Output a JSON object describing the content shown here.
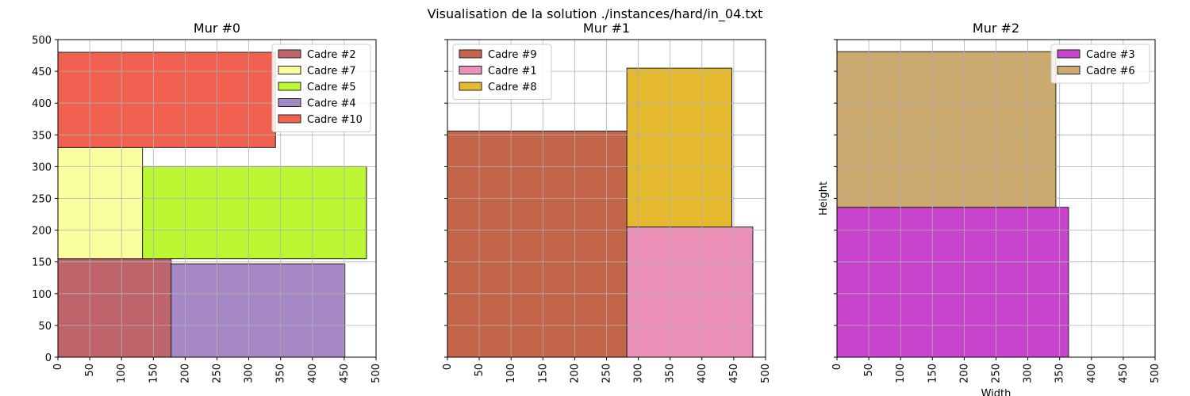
{
  "figure": {
    "suptitle": "Visualisation de la solution ./instances/hard/in_04.txt"
  },
  "chart_data": [
    {
      "type": "bar",
      "title": "Mur #0",
      "xlabel": "",
      "ylabel": "",
      "xlim": [
        0,
        500
      ],
      "ylim": [
        0,
        500
      ],
      "xticks": [
        0,
        50,
        100,
        150,
        200,
        250,
        300,
        350,
        400,
        450,
        500
      ],
      "yticks": [
        0,
        50,
        100,
        150,
        200,
        250,
        300,
        350,
        400,
        450,
        500
      ],
      "show_ytick_labels": true,
      "grid": true,
      "legend_position": "top-right",
      "rects": [
        {
          "name": "Cadre #2",
          "x": 0,
          "y": 0,
          "width": 178,
          "height": 155,
          "color": "#c0646c"
        },
        {
          "name": "Cadre #7",
          "x": 0,
          "y": 155,
          "width": 133,
          "height": 175,
          "color": "#fafe9f"
        },
        {
          "name": "Cadre #5",
          "x": 133,
          "y": 155,
          "width": 352,
          "height": 145,
          "color": "#bbf733"
        },
        {
          "name": "Cadre #4",
          "x": 178,
          "y": 0,
          "width": 273,
          "height": 147,
          "color": "#a688c6"
        },
        {
          "name": "Cadre #10",
          "x": 0,
          "y": 330,
          "width": 342,
          "height": 150,
          "color": "#f06152"
        }
      ]
    },
    {
      "type": "bar",
      "title": "Mur #1",
      "xlabel": "",
      "ylabel": "",
      "xlim": [
        0,
        500
      ],
      "ylim": [
        0,
        500
      ],
      "xticks": [
        0,
        50,
        100,
        150,
        200,
        250,
        300,
        350,
        400,
        450,
        500
      ],
      "yticks": [
        0,
        50,
        100,
        150,
        200,
        250,
        300,
        350,
        400,
        450,
        500
      ],
      "show_ytick_labels": false,
      "grid": true,
      "legend_position": "top-left",
      "rects": [
        {
          "name": "Cadre #9",
          "x": 0,
          "y": 0,
          "width": 282,
          "height": 356,
          "color": "#c46549"
        },
        {
          "name": "Cadre #1",
          "x": 282,
          "y": 0,
          "width": 198,
          "height": 205,
          "color": "#ec90ba"
        },
        {
          "name": "Cadre #8",
          "x": 282,
          "y": 205,
          "width": 165,
          "height": 250,
          "color": "#e5ba2e"
        }
      ]
    },
    {
      "type": "bar",
      "title": "Mur #2",
      "xlabel": "Width",
      "ylabel": "Height",
      "xlim": [
        0,
        500
      ],
      "ylim": [
        0,
        500
      ],
      "xticks": [
        0,
        50,
        100,
        150,
        200,
        250,
        300,
        350,
        400,
        450,
        500
      ],
      "yticks": [
        0,
        50,
        100,
        150,
        200,
        250,
        300,
        350,
        400,
        450,
        500
      ],
      "show_ytick_labels": false,
      "grid": true,
      "legend_position": "top-right",
      "rects": [
        {
          "name": "Cadre #3",
          "x": 0,
          "y": 0,
          "width": 364,
          "height": 236,
          "color": "#c944cd"
        },
        {
          "name": "Cadre #6",
          "x": 0,
          "y": 236,
          "width": 344,
          "height": 245,
          "color": "#cba96f"
        }
      ]
    }
  ]
}
